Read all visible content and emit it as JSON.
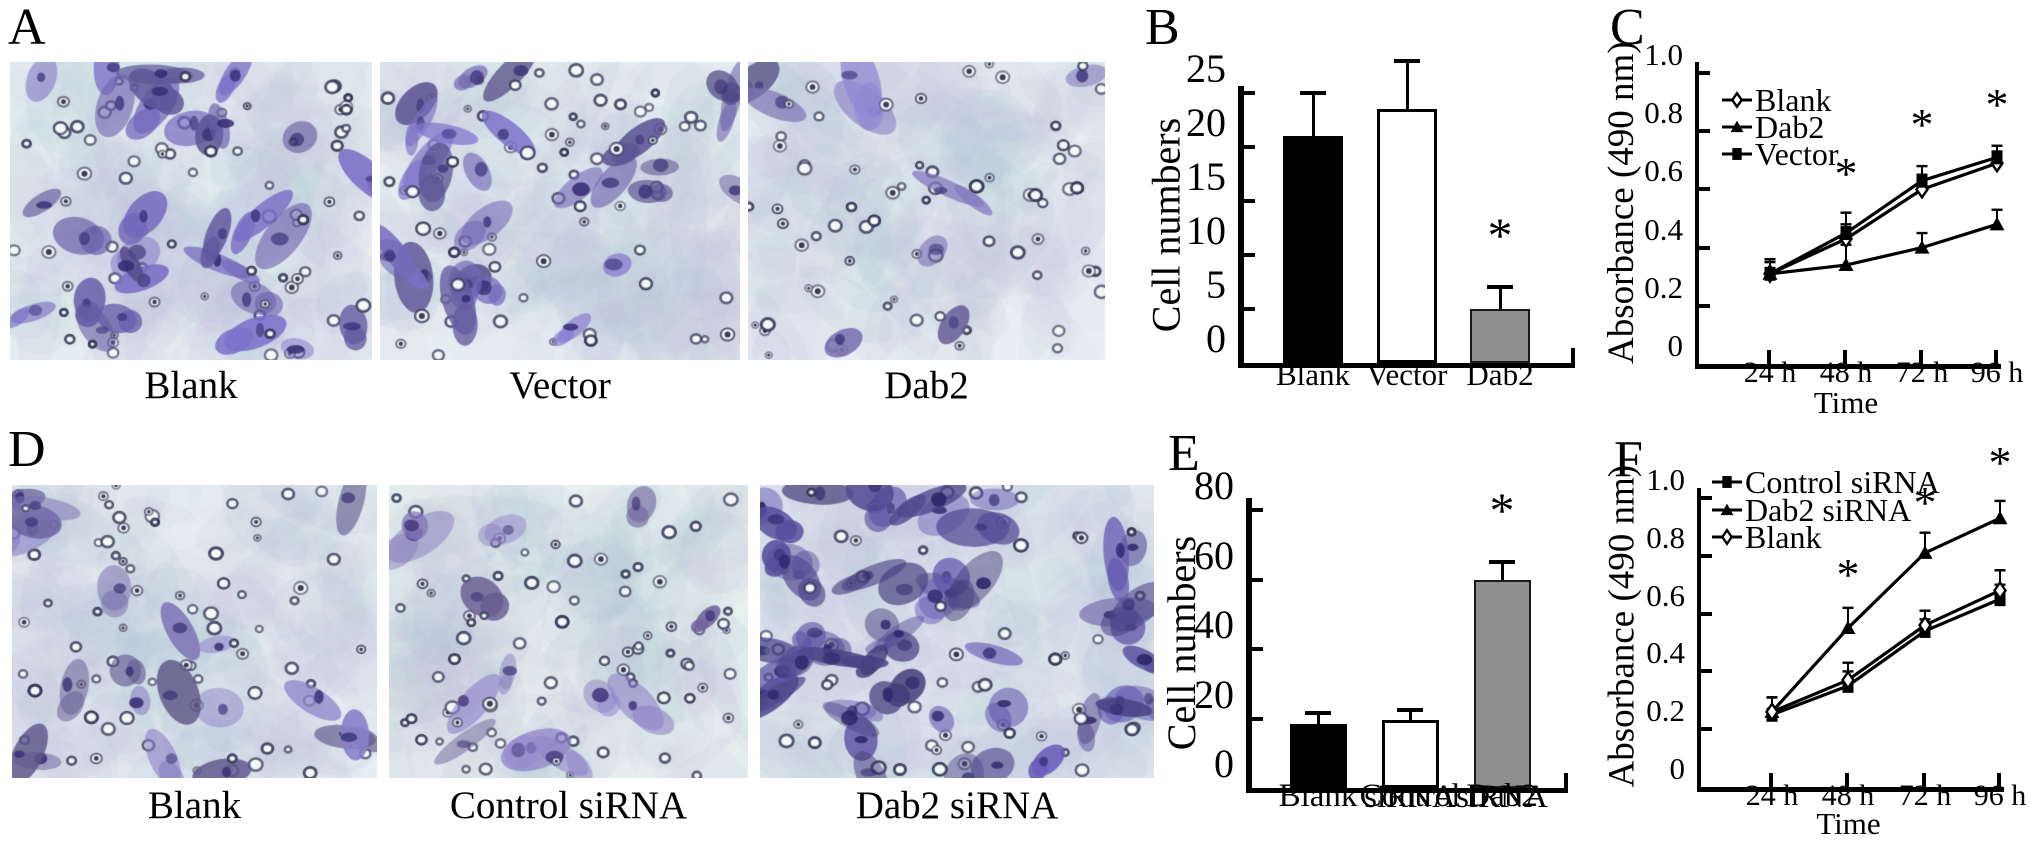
{
  "figure": {
    "rows": [
      {
        "letter": "A",
        "images": [
          {
            "caption": "Blank",
            "cells": 30,
            "pores": 75,
            "bg": "#e4edf1",
            "stain": "#665da6"
          },
          {
            "caption": "Vector",
            "cells": 27,
            "pores": 72,
            "bg": "#e5eef1",
            "stain": "#6a61a8"
          },
          {
            "caption": "Dab2",
            "cells": 9,
            "pores": 68,
            "bg": "#e8eff3",
            "stain": "#7a72b2"
          }
        ]
      },
      {
        "letter": "D",
        "images": [
          {
            "caption": "Blank",
            "cells": 20,
            "pores": 72,
            "bg": "#e7eef2",
            "stain": "#756cab"
          },
          {
            "caption": "Control siRNA",
            "cells": 14,
            "pores": 78,
            "bg": "#e8f1f0",
            "stain": "#7e72b0"
          },
          {
            "caption": "Dab2 siRNA",
            "cells": 52,
            "pores": 58,
            "bg": "#e0e8ef",
            "stain": "#564e9a"
          }
        ]
      }
    ],
    "panel_letters": {
      "B": "B",
      "C": "C",
      "E": "E",
      "F": "F"
    }
  },
  "colors": {
    "bar_black": "#000000",
    "bar_white": "#ffffff",
    "bar_gray": "#8e8e8e",
    "axis": "#000000"
  },
  "chart_data": [
    {
      "id": "B",
      "type": "bar",
      "ylabel": "Cell numbers",
      "ylim": [
        0,
        25
      ],
      "yticks": [
        0,
        5,
        10,
        15,
        20,
        25
      ],
      "ytick_labels": [
        "0",
        "5",
        "10",
        "15",
        "20",
        "25"
      ],
      "categories": [
        "Blank",
        "Vector",
        "Dab2"
      ],
      "values": [
        21,
        23.5,
        5
      ],
      "errors": [
        4,
        4.5,
        2
      ],
      "bar_styles": [
        "black",
        "white",
        "gray"
      ],
      "significant": [
        false,
        false,
        true
      ]
    },
    {
      "id": "C",
      "type": "line",
      "ylabel": "Absorbance (490 nm)",
      "xlabel": "Time",
      "ylim": [
        0,
        1.0
      ],
      "yticks": [
        0,
        0.2,
        0.4,
        0.6,
        0.8,
        1.0
      ],
      "ytick_labels": [
        "0",
        "0.2",
        "0.4",
        "0.6",
        "0.8",
        "1.0"
      ],
      "x_categories": [
        "24 h",
        "48 h",
        "72 h",
        "96 h"
      ],
      "legend": [
        "Blank",
        "Dab2",
        "Vector"
      ],
      "series": [
        {
          "name": "Blank",
          "marker": "diamond-open",
          "values": [
            0.31,
            0.43,
            0.6,
            0.69
          ],
          "errors": [
            0.05,
            0.05,
            0.05,
            0.04
          ]
        },
        {
          "name": "Dab2",
          "marker": "triangle-filled",
          "values": [
            0.31,
            0.34,
            0.4,
            0.48
          ],
          "errors": [
            0.05,
            0.07,
            0.05,
            0.05
          ]
        },
        {
          "name": "Vector",
          "marker": "square-filled",
          "values": [
            0.31,
            0.45,
            0.63,
            0.71
          ],
          "errors": [
            0.04,
            0.07,
            0.05,
            0.04
          ]
        }
      ],
      "asterisks": [
        {
          "x_index": 1,
          "y": 0.6
        },
        {
          "x_index": 2,
          "y": 0.77
        },
        {
          "x_index": 3,
          "y": 0.84
        }
      ]
    },
    {
      "id": "E",
      "type": "bar",
      "ylabel": "Cell numbers",
      "ylim": [
        0,
        80
      ],
      "yticks": [
        0,
        20,
        40,
        60,
        80
      ],
      "ytick_labels": [
        "0",
        "20",
        "40",
        "60",
        "80"
      ],
      "categories": [
        "Blank",
        "Control\nsiRNA",
        "Dab2\nsiRNA"
      ],
      "values": [
        18.5,
        19.5,
        60
      ],
      "errors": [
        3,
        3,
        5
      ],
      "bar_styles": [
        "black",
        "white",
        "gray"
      ],
      "significant": [
        false,
        false,
        true
      ]
    },
    {
      "id": "F",
      "type": "line",
      "ylabel": "Absorbance (490 nm)",
      "xlabel": "Time",
      "ylim": [
        0,
        1.0
      ],
      "yticks": [
        0,
        0.2,
        0.4,
        0.6,
        0.8,
        1.0
      ],
      "ytick_labels": [
        "0",
        "0.2",
        "0.4",
        "0.6",
        "0.8",
        "1.0"
      ],
      "x_categories": [
        "24 h",
        "48 h",
        "72 h",
        "96 h"
      ],
      "legend": [
        "Control siRNA",
        "Dab2 siRNA",
        "Blank"
      ],
      "series": [
        {
          "name": "Control siRNA",
          "marker": "square-filled",
          "values": [
            0.25,
            0.35,
            0.54,
            0.65
          ],
          "errors": [
            0.06,
            0.05,
            0.04,
            0.05
          ]
        },
        {
          "name": "Dab2 siRNA",
          "marker": "triangle-filled",
          "values": [
            0.26,
            0.55,
            0.81,
            0.93
          ],
          "errors": [
            0.05,
            0.07,
            0.07,
            0.06
          ]
        },
        {
          "name": "Blank",
          "marker": "diamond-open",
          "values": [
            0.26,
            0.37,
            0.56,
            0.68
          ],
          "errors": [
            0.05,
            0.06,
            0.05,
            0.07
          ]
        }
      ],
      "asterisks": [
        {
          "x_index": 1,
          "y": 0.68
        },
        {
          "x_index": 2,
          "y": 0.93
        },
        {
          "x_index": 3,
          "y": 1.07
        }
      ]
    }
  ]
}
